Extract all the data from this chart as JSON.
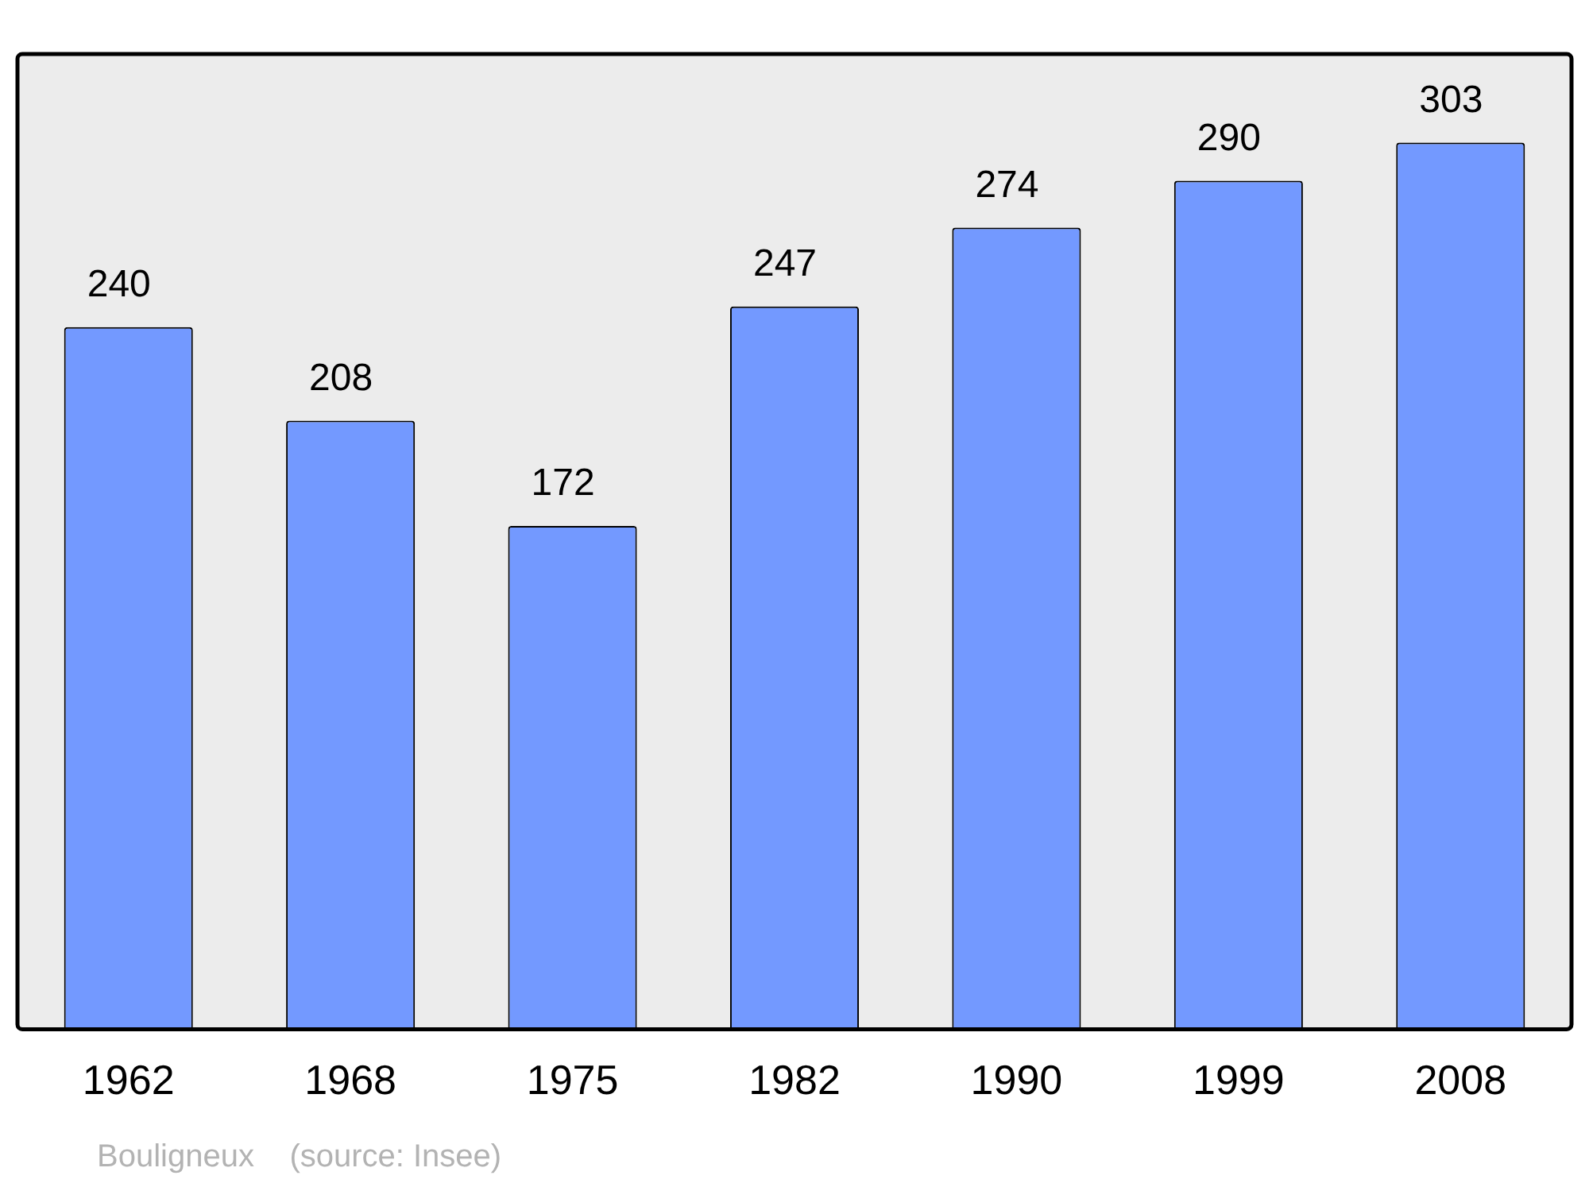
{
  "chart_data": {
    "type": "bar",
    "categories": [
      "1962",
      "1968",
      "1975",
      "1982",
      "1990",
      "1999",
      "2008"
    ],
    "values": [
      240,
      208,
      172,
      247,
      274,
      290,
      303
    ],
    "color": "#7399ff",
    "data_labels": true,
    "grid": false,
    "legend": false,
    "annotations": [
      "Bouligneux    (source: Insee)"
    ]
  }
}
